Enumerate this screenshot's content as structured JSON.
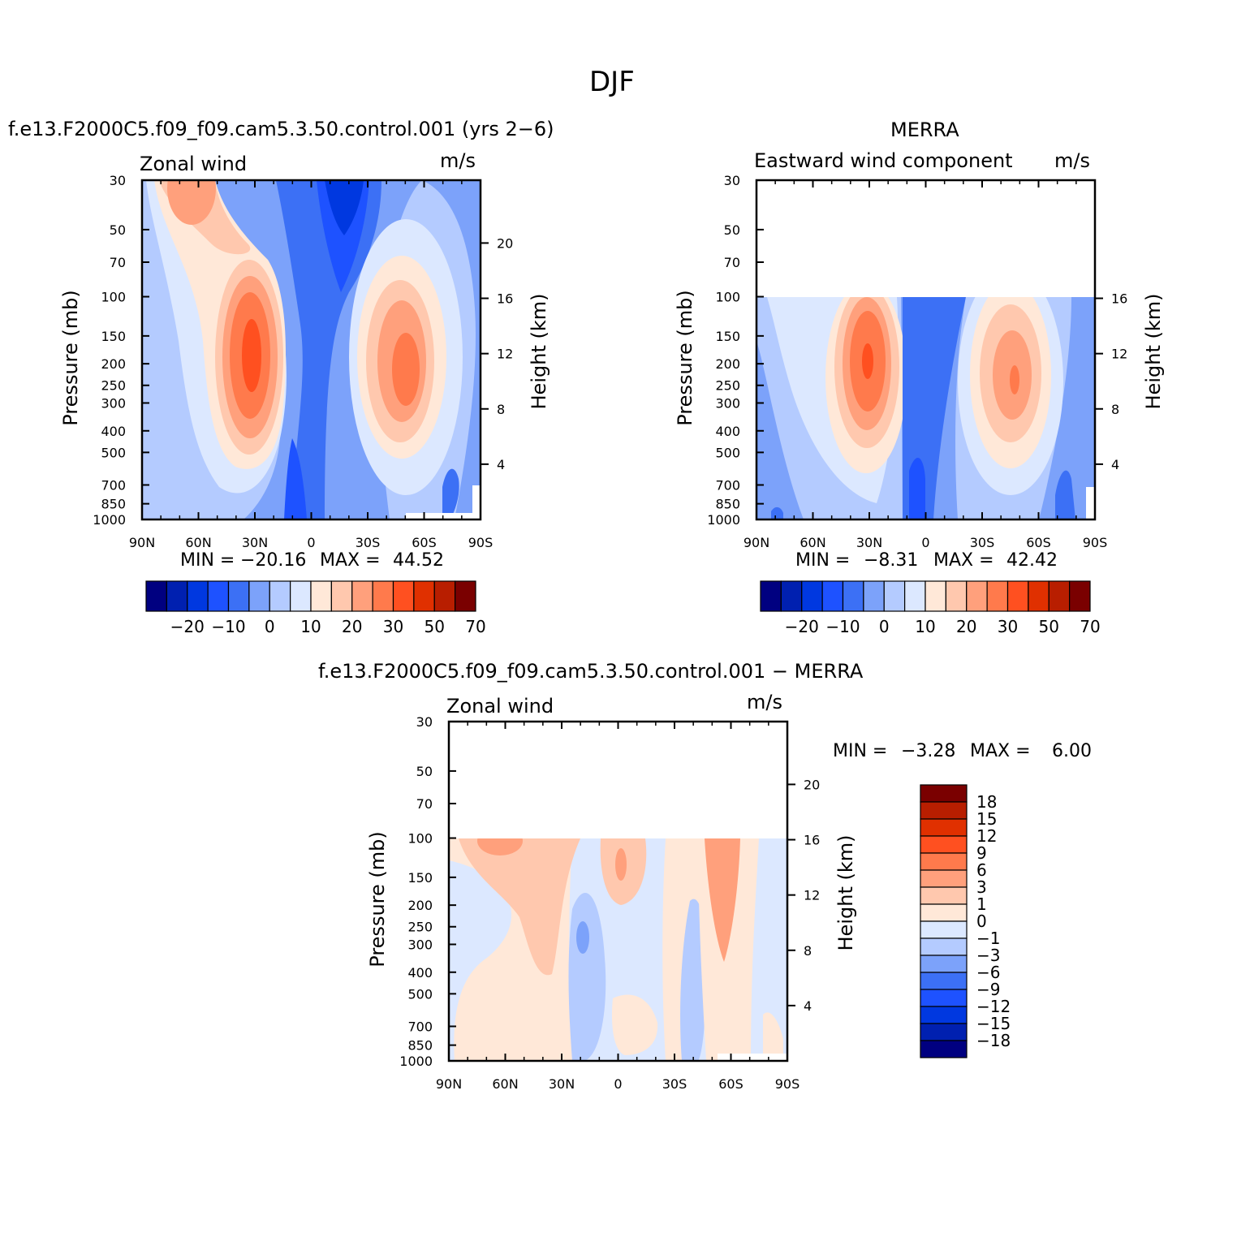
{
  "figure": {
    "title": "DJF"
  },
  "colors": {
    "scale": [
      "#000080",
      "#0020b0",
      "#0038e0",
      "#1e52ff",
      "#3c70f5",
      "#7ca2fa",
      "#b4cbff",
      "#dce8ff",
      "#ffe8d8",
      "#ffc8ae",
      "#ffa07c",
      "#ff7a4c",
      "#ff5020",
      "#e03000",
      "#b81e00",
      "#7a0000"
    ]
  },
  "panels": [
    {
      "id": "model",
      "title": "f.e13.F2000C5.f09_f09.cam5.3.50.control.001 (yrs 2−6)",
      "left_label": "Zonal wind",
      "units": "m/s",
      "min_label": "MIN =",
      "min_value": "−20.16",
      "max_label": "MAX =",
      "max_value": "44.52",
      "colorbar_labels": [
        "−20",
        "−10",
        "0",
        "10",
        "20",
        "30",
        "50",
        "70"
      ]
    },
    {
      "id": "obs",
      "title": "MERRA",
      "left_label": "Eastward wind component",
      "units": "m/s",
      "min_label": "MIN =",
      "min_value": "−8.31",
      "max_label": "MAX =",
      "max_value": "42.42",
      "colorbar_labels": [
        "−20",
        "−10",
        "0",
        "10",
        "20",
        "30",
        "50",
        "70"
      ]
    },
    {
      "id": "diff",
      "title": "f.e13.F2000C5.f09_f09.cam5.3.50.control.001 − MERRA",
      "left_label": "Zonal wind",
      "units": "m/s",
      "min_label": "MIN =",
      "min_value": "−3.28",
      "max_label": "MAX =",
      "max_value": "6.00",
      "colorbar_labels": [
        "18",
        "15",
        "12",
        "9",
        "6",
        "3",
        "1",
        "0",
        "−1",
        "−3",
        "−6",
        "−9",
        "−12",
        "−15",
        "−18"
      ]
    }
  ],
  "chart_data": [
    {
      "type": "heatmap",
      "title": "f.e13.F2000C5.f09_f09.cam5.3.50.control.001 (yrs 2−6)",
      "variable": "Zonal wind",
      "units": "m/s",
      "xlabel": "",
      "ylabel": "Pressure (mb)",
      "y2label": "Height (km)",
      "x_ticks": [
        "90N",
        "60N",
        "30N",
        "0",
        "30S",
        "60S",
        "90S"
      ],
      "y_ticks": [
        30,
        50,
        70,
        100,
        150,
        200,
        250,
        300,
        400,
        500,
        700,
        850,
        1000
      ],
      "y2_ticks": [
        4,
        8,
        12,
        16,
        20
      ],
      "ylim": [
        1000,
        30
      ],
      "y_scale": "log",
      "min": -20.16,
      "max": 44.52,
      "features": [
        {
          "kind": "max",
          "lat": -50,
          "pressure": 200,
          "value": 40
        },
        {
          "kind": "max",
          "lat": 30,
          "pressure": 200,
          "value": 44.52
        },
        {
          "kind": "max",
          "lat": 60,
          "pressure": 30,
          "value": 30
        },
        {
          "kind": "min",
          "lat": -15,
          "pressure": 30,
          "value": -20.16
        }
      ]
    },
    {
      "type": "heatmap",
      "title": "MERRA",
      "variable": "Eastward wind component",
      "units": "m/s",
      "xlabel": "",
      "ylabel": "Pressure (mb)",
      "y2label": "Height (km)",
      "x_ticks": [
        "90N",
        "60N",
        "30N",
        "0",
        "30S",
        "60S",
        "90S"
      ],
      "y_ticks": [
        30,
        50,
        70,
        100,
        150,
        200,
        250,
        300,
        400,
        500,
        700,
        850,
        1000
      ],
      "y2_ticks": [
        4,
        8,
        12,
        16
      ],
      "ylim": [
        1000,
        30
      ],
      "y_scale": "log",
      "data_top_pressure": 100,
      "min": -8.31,
      "max": 42.42,
      "features": [
        {
          "kind": "max",
          "lat": 30,
          "pressure": 200,
          "value": 42.42
        },
        {
          "kind": "max",
          "lat": -47,
          "pressure": 250,
          "value": 35
        }
      ]
    },
    {
      "type": "heatmap",
      "title": "f.e13.F2000C5.f09_f09.cam5.3.50.control.001 − MERRA",
      "variable": "Zonal wind",
      "units": "m/s",
      "xlabel": "",
      "ylabel": "Pressure (mb)",
      "y2label": "Height (km)",
      "x_ticks": [
        "90N",
        "60N",
        "30N",
        "0",
        "30S",
        "60S",
        "90S"
      ],
      "y_ticks": [
        30,
        50,
        70,
        100,
        150,
        200,
        250,
        300,
        400,
        500,
        700,
        850,
        1000
      ],
      "y2_ticks": [
        4,
        8,
        12,
        16,
        20
      ],
      "ylim": [
        1000,
        30
      ],
      "y_scale": "log",
      "data_top_pressure": 100,
      "min": -3.28,
      "max": 6.0,
      "levels": [
        -18,
        -15,
        -12,
        -9,
        -6,
        -3,
        -1,
        0,
        1,
        3,
        6,
        9,
        12,
        15,
        18
      ],
      "features": [
        {
          "kind": "max",
          "lat": -55,
          "pressure": 150,
          "value": 6.0
        },
        {
          "kind": "min",
          "lat": 20,
          "pressure": 250,
          "value": -3.28
        }
      ]
    }
  ]
}
